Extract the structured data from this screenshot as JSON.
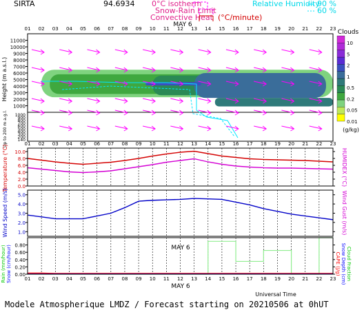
{
  "header": {
    "site": "SIRTA",
    "coord_fragment": "94.6934",
    "legend_isotherm": "0°C isotherm",
    "legend_snow_rain": "Snow-Rain Limit",
    "legend_convective": "Convective Heat",
    "legend_convective_unit": "(°C/minute)",
    "legend_rh": "Relative Humidity",
    "rh_90": "90 %",
    "rh_60": "60 %"
  },
  "footer": {
    "universal_time": "Universal Time",
    "caption": "Modele Atmospherique LMDZ / Forecast starting on 20210506 at 0hUT"
  },
  "colors": {
    "cloud_levels": [
      "#ffff00",
      "#bfe85a",
      "#7fd37f",
      "#3fa83f",
      "#2a8a55",
      "#2f7a7a",
      "#3a6d9a",
      "#3a4fbf",
      "#5a2bd4",
      "#8a2bd8",
      "#b02bd8",
      "#d22bd8"
    ],
    "wind": "#ff00ff",
    "rh_line": "#00e5ff",
    "temperature": "#d40000",
    "humidex": "#d400d4",
    "wind_speed": "#0000c8",
    "rain": "#00e000",
    "snow": "#0000ff",
    "cape": "#ff0000",
    "cloud_fraction": "#90ee90"
  },
  "chart_data": [
    {
      "panel": "clouds",
      "type": "heatmap",
      "date_label": "MAY 6",
      "x_ticks": [
        "01",
        "02",
        "03",
        "04",
        "05",
        "06",
        "07",
        "08",
        "09",
        "10",
        "11",
        "12",
        "13",
        "14",
        "15",
        "16",
        "17",
        "18",
        "19",
        "20",
        "21",
        "22",
        "23"
      ],
      "ylabel": "Height (m a.s.l.)",
      "yticks_main": [
        1000,
        2000,
        3000,
        4000,
        5000,
        6000,
        7000,
        8000,
        9000,
        10000,
        11000
      ],
      "yticks_low": [
        1000,
        900,
        800,
        700,
        600,
        500,
        400,
        300,
        200,
        140
      ],
      "ylabel_low": "Up to 200 m a.g.l.",
      "colorbar_title": "Clouds",
      "colorbar_labels": [
        "10",
        "5",
        "2",
        "1",
        "0.5",
        "0.2",
        "0.05",
        "0.01"
      ],
      "colorbar_unit": "(g/kg)",
      "cloud_layers": [
        {
          "x0": 2.0,
          "x1": 23.0,
          "base": 2300,
          "top": 6500,
          "level": 2
        },
        {
          "x0": 2.6,
          "x1": 21.0,
          "base": 2800,
          "top": 5800,
          "level": 3
        },
        {
          "x0": 10.0,
          "x1": 21.0,
          "base": 2600,
          "top": 5600,
          "level": 4
        },
        {
          "x0": 13.0,
          "x1": 22.5,
          "base": 2200,
          "top": 6000,
          "level": 6
        },
        {
          "x0": 14.5,
          "x1": 23.0,
          "base": 900,
          "top": 2200,
          "level": 5
        },
        {
          "x0": 9.5,
          "x1": 13.5,
          "base": 4100,
          "top": 4600,
          "level": 7
        }
      ]
    },
    {
      "panel": "temperature",
      "type": "line",
      "x": [
        1,
        2,
        3,
        4,
        5,
        6,
        7,
        8,
        9,
        10,
        11,
        12,
        13,
        14,
        15,
        16,
        17,
        18,
        19,
        20,
        21,
        22,
        23
      ],
      "ylabel": "Temperature (°C)",
      "ylabel_right": "HUMIDEX (°C)",
      "yticks": [
        "0.0",
        "2.0",
        "4.0",
        "6.0",
        "8.0",
        "10.0"
      ],
      "ylim": [
        0,
        11
      ],
      "series": [
        {
          "name": "Temperature",
          "values": [
            8.0,
            7.5,
            7.0,
            6.6,
            6.3,
            6.6,
            6.9,
            7.4,
            8.0,
            8.7,
            9.3,
            9.8,
            10.1,
            9.4,
            8.7,
            8.3,
            7.9,
            7.7,
            7.6,
            7.5,
            7.4,
            7.2,
            7.0
          ]
        },
        {
          "name": "Humidex",
          "values": [
            5.3,
            4.9,
            4.5,
            4.1,
            3.9,
            4.1,
            4.4,
            5.0,
            5.6,
            6.2,
            6.9,
            7.4,
            7.9,
            7.0,
            6.3,
            5.8,
            5.5,
            5.3,
            5.2,
            5.2,
            5.1,
            5.0,
            4.9
          ]
        }
      ]
    },
    {
      "panel": "wind",
      "type": "line",
      "x": [
        1,
        2,
        3,
        4,
        5,
        6,
        7,
        8,
        9,
        10,
        11,
        12,
        13,
        14,
        15,
        16,
        17,
        18,
        19,
        20,
        21,
        22,
        23
      ],
      "ylabel": "Wind Speed (m/s)",
      "ylabel_right": "Wind Gust (m/s)",
      "yticks": [
        "1.0",
        "2.0",
        "3.0",
        "4.0",
        "5.0"
      ],
      "ylim": [
        0.5,
        5.5
      ],
      "series": [
        {
          "name": "Wind Speed",
          "values": [
            2.8,
            2.6,
            2.4,
            2.4,
            2.4,
            2.7,
            3.0,
            3.6,
            4.3,
            4.4,
            4.45,
            4.5,
            4.6,
            4.55,
            4.5,
            4.2,
            3.9,
            3.5,
            3.2,
            2.9,
            2.7,
            2.5,
            2.3
          ]
        }
      ]
    },
    {
      "panel": "precipitation",
      "type": "line",
      "date_label": "MAY 6",
      "x": [
        1,
        2,
        3,
        4,
        5,
        6,
        7,
        8,
        9,
        10,
        11,
        12,
        13,
        14,
        15,
        16,
        17,
        18,
        19,
        20,
        21,
        22,
        23
      ],
      "ylabel_left": "Rain (mm/hour)",
      "ylabel_left2": "Snow (cm/hour)",
      "ylabel_right": "CAPE (J/g)",
      "ylabel_right2": "Snow Depth (cm)",
      "ylabel_right3": "Cloud Fraction",
      "yticks": [
        "0.00",
        "0.20",
        "0.40",
        "0.60",
        "0.80"
      ],
      "ylim": [
        0,
        1
      ],
      "series": [
        {
          "name": "Cloud Fraction",
          "step_values": [
            0,
            0,
            0,
            0,
            0,
            0,
            0,
            0,
            0,
            0,
            0,
            0,
            0,
            0.9,
            0.9,
            0.35,
            0.35,
            0.65,
            0.65,
            0,
            0,
            1,
            1
          ]
        },
        {
          "name": "Rain",
          "values": [
            0.03,
            0.03,
            0.02,
            0.02,
            0.02,
            0.02,
            0.02,
            0.02,
            0.02,
            0.02,
            0.02,
            0.02,
            0.02,
            0.02,
            0.02,
            0.02,
            0.02,
            0.02,
            0.02,
            0.02,
            0.02,
            0.02,
            0.02
          ]
        }
      ]
    }
  ]
}
